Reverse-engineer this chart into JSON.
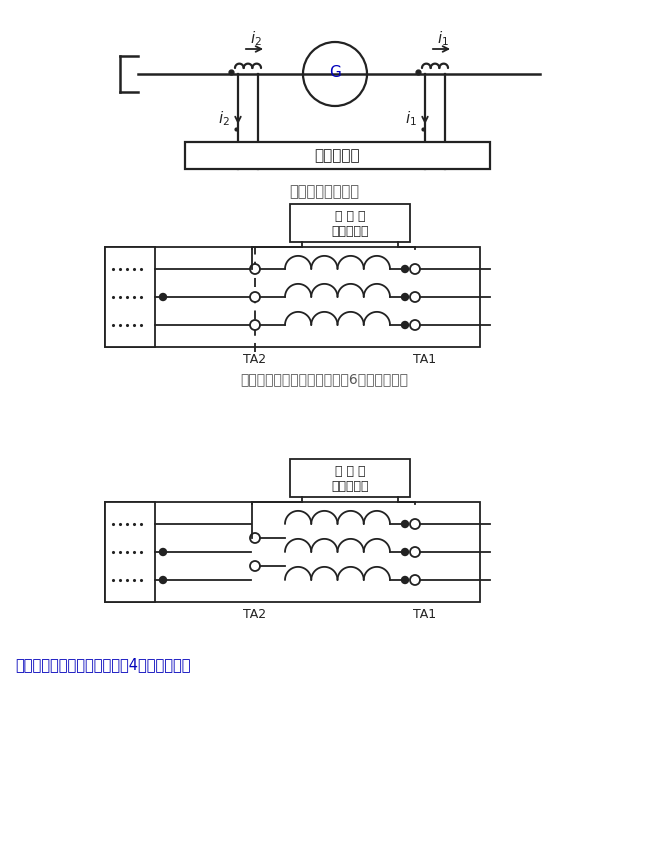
{
  "title1": "完全纵联差动保护",
  "title2": "不完全纵联差动保护（中性点6个端子类型）",
  "title3": "不完全纵联差动保护（中性点4个端子类型）",
  "title3_color": "#0000bb",
  "title1_color": "#555555",
  "title2_color": "#555555",
  "G_label_color": "#0000bb",
  "box_label1": "发电机差动",
  "box_label2_line1": "发 电 机",
  "box_label2_line2": "不完全纵差",
  "TA1_label": "TA1",
  "TA2_label": "TA2",
  "line_color": "#222222",
  "bg_color": "#ffffff"
}
